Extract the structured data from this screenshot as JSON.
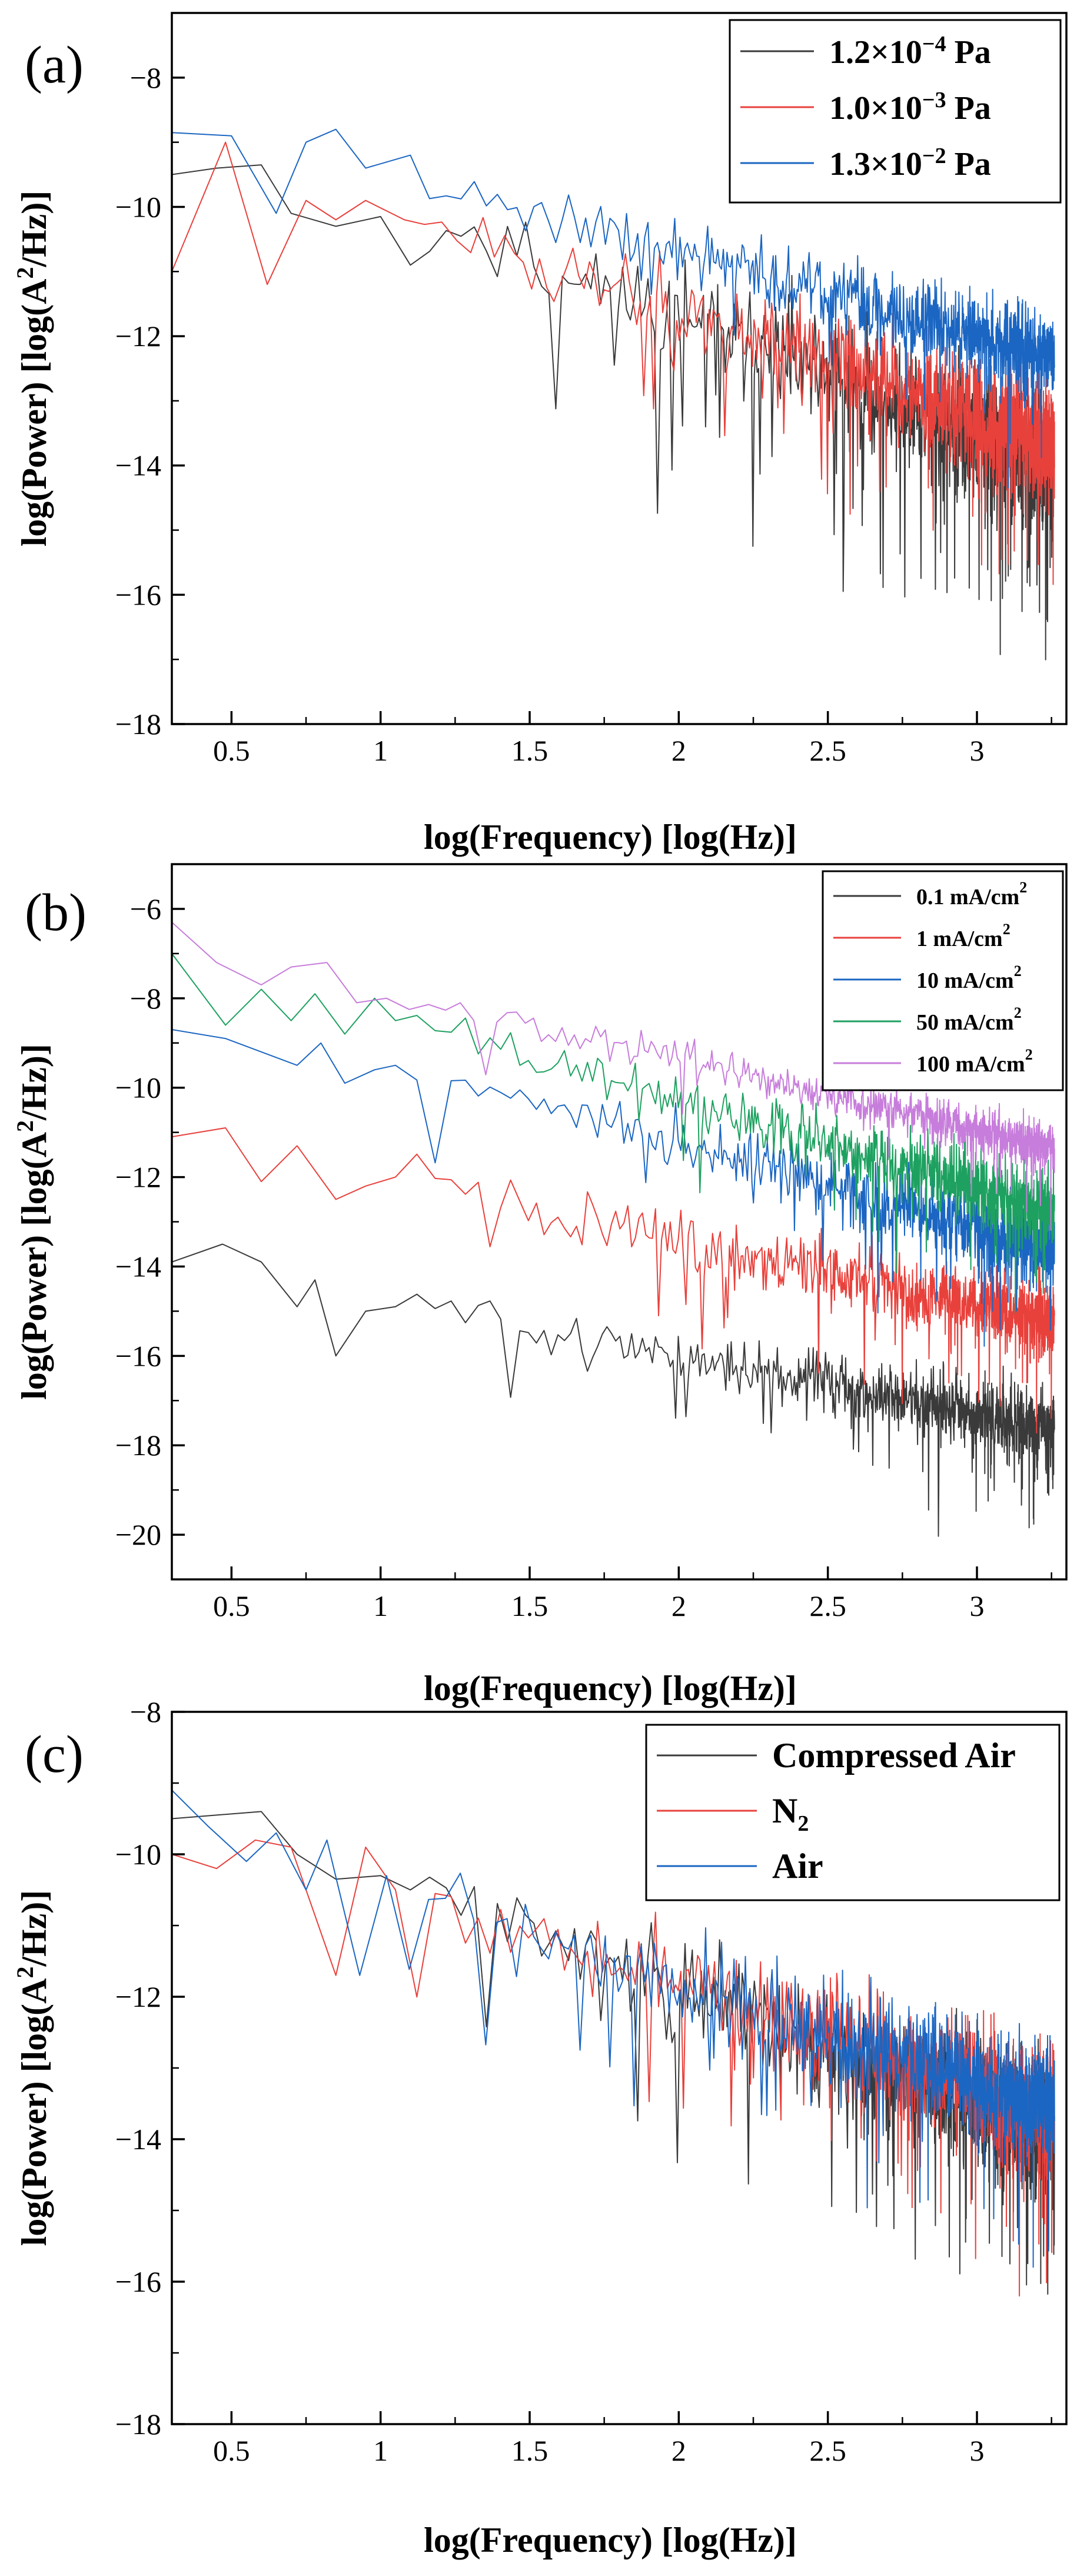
{
  "chart_data": [
    {
      "type": "line",
      "panel_label": "(a)",
      "xlabel": "log(Frequency) [log(Hz)]",
      "ylabel_parts": [
        "log(Power) [log(A",
        "2",
        "/Hz)]"
      ],
      "xlim": [
        0.3,
        3.3
      ],
      "ylim": [
        -18,
        -7
      ],
      "xticks": [
        0.5,
        1,
        1.5,
        2,
        2.5,
        3
      ],
      "xtick_labels": [
        "0.5",
        "1",
        "1.5",
        "2",
        "2.5",
        "3"
      ],
      "yticks": [
        -18,
        -16,
        -14,
        -12,
        -10,
        -8
      ],
      "ytick_labels": [
        "−18",
        "−16",
        "−14",
        "−12",
        "−10",
        "−8"
      ],
      "legend_position": "top-right",
      "series": [
        {
          "name_parts": [
            "1.2×10",
            "−4",
            " Pa"
          ],
          "color": "#3a3a3a",
          "seed": 11,
          "start": -9.5,
          "end": -13.8,
          "noise": 1.1,
          "dips": 0.07,
          "dipdepth": 1.9,
          "lowf": [
            [
              0.3,
              -9.5
            ],
            [
              0.45,
              -9.4
            ],
            [
              0.6,
              -9.35
            ],
            [
              0.7,
              -10.1
            ],
            [
              0.85,
              -10.3
            ],
            [
              1.0,
              -10.15
            ],
            [
              1.1,
              -10.9
            ]
          ]
        },
        {
          "name_parts": [
            "1.0×10",
            "−3",
            " Pa"
          ],
          "color": "#e8413c",
          "seed": 23,
          "start": -9.9,
          "end": -13.6,
          "noise": 0.95,
          "dips": 0.04,
          "dipdepth": 1.4,
          "lowf": [
            [
              0.3,
              -11.0
            ],
            [
              0.48,
              -9.0
            ],
            [
              0.62,
              -11.2
            ],
            [
              0.75,
              -9.9
            ],
            [
              0.85,
              -10.2
            ],
            [
              0.95,
              -9.9
            ],
            [
              1.08,
              -10.2
            ]
          ]
        },
        {
          "name_parts": [
            "1.3×10",
            "−2",
            " Pa"
          ],
          "color": "#1b66c2",
          "seed": 37,
          "start": -9.6,
          "end": -12.4,
          "noise": 0.7,
          "dips": 0.02,
          "dipdepth": 1.0,
          "lowf": [
            [
              0.3,
              -8.85
            ],
            [
              0.5,
              -8.9
            ],
            [
              0.65,
              -10.1
            ],
            [
              0.75,
              -9.0
            ],
            [
              0.85,
              -8.8
            ],
            [
              0.95,
              -9.4
            ],
            [
              1.1,
              -9.2
            ]
          ]
        }
      ]
    },
    {
      "type": "line",
      "panel_label": "(b)",
      "xlabel": "log(Frequency) [log(Hz)]",
      "ylabel_parts": [
        "log(Power) [log(A",
        "2",
        "/Hz)]"
      ],
      "xlim": [
        0.3,
        3.3
      ],
      "ylim": [
        -21,
        -5
      ],
      "xticks": [
        0.5,
        1,
        1.5,
        2,
        2.5,
        3
      ],
      "xtick_labels": [
        "0.5",
        "1",
        "1.5",
        "2",
        "2.5",
        "3"
      ],
      "yticks": [
        -20,
        -18,
        -16,
        -14,
        -12,
        -10,
        -8,
        -6
      ],
      "ytick_labels": [
        "−20",
        "−18",
        "−16",
        "−14",
        "−12",
        "−10",
        "−8",
        "−6"
      ],
      "legend_position": "top-right",
      "series": [
        {
          "name_parts": [
            "0.1 mA/cm",
            "2",
            ""
          ],
          "color": "#3a3a3a",
          "seed": 51,
          "start": -14.6,
          "end": -17.6,
          "noise": 0.85,
          "dips": 0.05,
          "dipdepth": 1.5,
          "lowf": [
            [
              0.3,
              -13.9
            ],
            [
              0.47,
              -13.5
            ],
            [
              0.6,
              -13.9
            ],
            [
              0.72,
              -14.9
            ],
            [
              0.78,
              -14.3
            ],
            [
              0.85,
              -16.0
            ],
            [
              0.95,
              -15.0
            ],
            [
              1.05,
              -14.9
            ]
          ]
        },
        {
          "name_parts": [
            "1 mA/cm",
            "2",
            ""
          ],
          "color": "#e8413c",
          "seed": 63,
          "start": -11.8,
          "end": -15.2,
          "noise": 0.85,
          "dips": 0.04,
          "dipdepth": 1.5,
          "lowf": [
            [
              0.3,
              -11.1
            ],
            [
              0.48,
              -10.9
            ],
            [
              0.6,
              -12.1
            ],
            [
              0.72,
              -11.3
            ],
            [
              0.85,
              -12.5
            ],
            [
              0.95,
              -12.2
            ],
            [
              1.05,
              -12.0
            ]
          ]
        },
        {
          "name_parts": [
            "10 mA/cm",
            "2",
            ""
          ],
          "color": "#1b66c2",
          "seed": 77,
          "start": -9.5,
          "end": -13.6,
          "noise": 0.9,
          "dips": 0.04,
          "dipdepth": 1.4,
          "lowf": [
            [
              0.3,
              -8.7
            ],
            [
              0.48,
              -8.9
            ],
            [
              0.6,
              -9.2
            ],
            [
              0.72,
              -9.5
            ],
            [
              0.8,
              -9.0
            ],
            [
              0.88,
              -9.9
            ],
            [
              0.98,
              -9.6
            ],
            [
              1.05,
              -9.5
            ]
          ]
        },
        {
          "name_parts": [
            "50 mA/cm",
            "2",
            ""
          ],
          "color": "#1ea160",
          "seed": 89,
          "start": -8.3,
          "end": -12.7,
          "noise": 0.85,
          "dips": 0.03,
          "dipdepth": 1.3,
          "lowf": [
            [
              0.3,
              -7.0
            ],
            [
              0.48,
              -8.6
            ],
            [
              0.6,
              -7.8
            ],
            [
              0.7,
              -8.5
            ],
            [
              0.78,
              -7.9
            ],
            [
              0.88,
              -8.8
            ],
            [
              0.98,
              -8.0
            ],
            [
              1.05,
              -8.5
            ]
          ]
        },
        {
          "name_parts": [
            "100 mA/cm",
            "2",
            ""
          ],
          "color": "#c77ddb",
          "seed": 97,
          "start": -7.7,
          "end": -11.3,
          "noise": 0.55,
          "dips": 0.02,
          "dipdepth": 1.0,
          "lowf": [
            [
              0.3,
              -6.3
            ],
            [
              0.45,
              -7.2
            ],
            [
              0.6,
              -7.7
            ],
            [
              0.7,
              -7.3
            ],
            [
              0.82,
              -7.2
            ],
            [
              0.92,
              -8.1
            ],
            [
              1.02,
              -8.0
            ]
          ]
        }
      ]
    },
    {
      "type": "line",
      "panel_label": "(c)",
      "xlabel": "log(Frequency) [log(Hz)]",
      "ylabel_parts": [
        "log(Power) [log(A",
        "2",
        "/Hz)]"
      ],
      "xlim": [
        0.3,
        3.3
      ],
      "ylim": [
        -18,
        -8
      ],
      "xticks": [
        0.5,
        1,
        1.5,
        2,
        2.5,
        3
      ],
      "xtick_labels": [
        "0.5",
        "1",
        "1.5",
        "2",
        "2.5",
        "3"
      ],
      "yticks": [
        -18,
        -16,
        -14,
        -12,
        -10,
        -8
      ],
      "ytick_labels": [
        "−18",
        "−16",
        "−14",
        "−12",
        "−10",
        "−8"
      ],
      "legend_position": "top-right",
      "series": [
        {
          "name_parts": [
            "Compressed Air",
            "",
            ""
          ],
          "color": "#3a3a3a",
          "seed": 111,
          "start": -10.2,
          "end": -13.9,
          "noise": 0.95,
          "dips": 0.05,
          "dipdepth": 1.6,
          "lowf": [
            [
              0.3,
              -9.5
            ],
            [
              0.45,
              -9.45
            ],
            [
              0.6,
              -9.4
            ],
            [
              0.72,
              -10.0
            ],
            [
              0.85,
              -10.35
            ],
            [
              1.0,
              -10.3
            ],
            [
              1.1,
              -10.5
            ]
          ]
        },
        {
          "name_parts": [
            "N",
            "2",
            ""
          ],
          "color": "#e8413c",
          "seed": 127,
          "start": -10.3,
          "end": -13.6,
          "noise": 0.95,
          "dips": 0.04,
          "dipdepth": 1.5,
          "lowf": [
            [
              0.3,
              -10.0
            ],
            [
              0.45,
              -10.2
            ],
            [
              0.58,
              -9.8
            ],
            [
              0.7,
              -9.9
            ],
            [
              0.85,
              -11.7
            ],
            [
              0.95,
              -9.9
            ],
            [
              1.05,
              -10.5
            ]
          ]
        },
        {
          "name_parts": [
            "Air",
            "",
            ""
          ],
          "color": "#1b66c2",
          "seed": 139,
          "start": -10.5,
          "end": -13.6,
          "noise": 0.85,
          "dips": 0.03,
          "dipdepth": 1.4,
          "lowf": [
            [
              0.3,
              -9.1
            ],
            [
              0.42,
              -9.6
            ],
            [
              0.55,
              -10.1
            ],
            [
              0.65,
              -9.7
            ],
            [
              0.75,
              -10.5
            ],
            [
              0.82,
              -9.8
            ],
            [
              0.93,
              -11.7
            ],
            [
              1.02,
              -10.3
            ]
          ]
        }
      ]
    }
  ]
}
